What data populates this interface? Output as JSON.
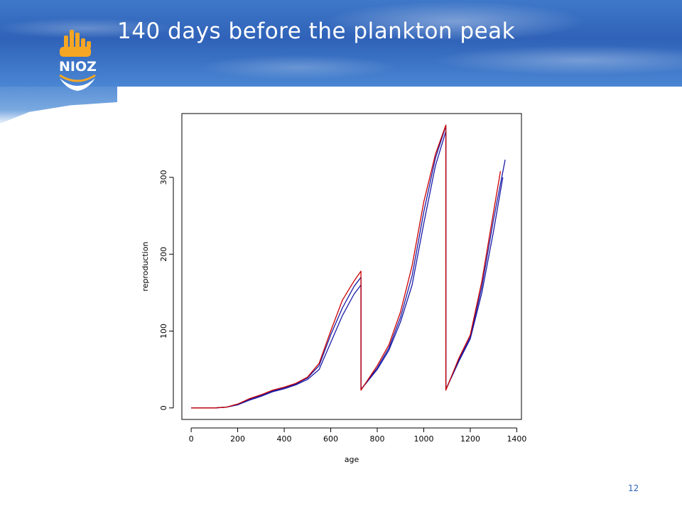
{
  "slide": {
    "title": "140 days before the plankton peak",
    "page_number": "12",
    "logo_text": "NIOZ"
  },
  "colors": {
    "banner": "#2f62b8",
    "logo_orange": "#f5a623",
    "series_blue": "#1a1aa6",
    "series_red": "#cc0000"
  },
  "chart_data": {
    "type": "line",
    "title": "",
    "xlabel": "age",
    "ylabel": "reproduction",
    "xlim": [
      -40,
      1420
    ],
    "ylim": [
      -15,
      383
    ],
    "x_ticks": [
      0,
      200,
      400,
      600,
      800,
      1000,
      1200,
      1400
    ],
    "y_ticks": [
      0,
      100,
      200,
      300
    ],
    "grid": false,
    "legend": "none",
    "series": [
      {
        "color": "#1a1aa6",
        "x": [
          0,
          100,
          150,
          200,
          250,
          300,
          350,
          400,
          450,
          500,
          550,
          600,
          650,
          700,
          730,
          730,
          800,
          850,
          900,
          950,
          1000,
          1050,
          1095,
          1095,
          1150,
          1200,
          1250,
          1300,
          1340
        ],
        "y": [
          0,
          0,
          1,
          4,
          10,
          15,
          21,
          25,
          30,
          37,
          50,
          85,
          120,
          148,
          160,
          24,
          50,
          75,
          112,
          160,
          240,
          315,
          360,
          24,
          60,
          90,
          150,
          230,
          300
        ]
      },
      {
        "color": "#1a1aa6",
        "x": [
          0,
          100,
          150,
          200,
          250,
          300,
          350,
          400,
          450,
          500,
          550,
          600,
          650,
          700,
          730,
          730,
          800,
          850,
          900,
          950,
          1000,
          1050,
          1095,
          1095,
          1150,
          1200,
          1250,
          1300,
          1350
        ],
        "y": [
          0,
          0,
          1,
          4,
          11,
          16,
          22,
          26,
          31,
          39,
          55,
          95,
          130,
          158,
          170,
          24,
          52,
          78,
          118,
          172,
          255,
          325,
          367,
          24,
          62,
          92,
          158,
          245,
          323
        ]
      },
      {
        "color": "#cc0000",
        "x": [
          0,
          100,
          150,
          200,
          250,
          300,
          350,
          400,
          450,
          500,
          550,
          600,
          650,
          700,
          730,
          730,
          800,
          850,
          900,
          950,
          1000,
          1050,
          1095,
          1095,
          1150,
          1200,
          1250,
          1300,
          1330
        ],
        "y": [
          0,
          0,
          1,
          5,
          12,
          17,
          23,
          27,
          32,
          40,
          58,
          100,
          140,
          165,
          178,
          23,
          55,
          82,
          125,
          185,
          268,
          330,
          368,
          23,
          64,
          95,
          165,
          255,
          308
        ]
      }
    ]
  }
}
